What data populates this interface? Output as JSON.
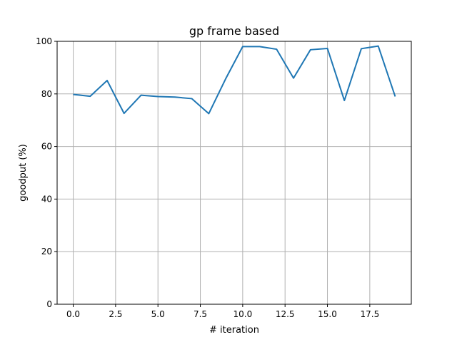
{
  "chart_data": {
    "type": "line",
    "title": "gp frame based",
    "xlabel": "# iteration",
    "ylabel": "goodput (%)",
    "xlim": [
      -0.95,
      19.95
    ],
    "ylim": [
      0,
      100
    ],
    "xticks": [
      0.0,
      2.5,
      5.0,
      7.5,
      10.0,
      12.5,
      15.0,
      17.5
    ],
    "xtick_labels": [
      "0.0",
      "2.5",
      "5.0",
      "7.5",
      "10.0",
      "12.5",
      "15.0",
      "17.5"
    ],
    "yticks": [
      0,
      20,
      40,
      60,
      80,
      100
    ],
    "ytick_labels": [
      "0",
      "20",
      "40",
      "60",
      "80",
      "100"
    ],
    "grid": true,
    "series": [
      {
        "color": "#1f77b4",
        "x": [
          0,
          1,
          2,
          3,
          4,
          5,
          6,
          7,
          8,
          9,
          10,
          11,
          12,
          13,
          14,
          15,
          16,
          17,
          18,
          19
        ],
        "y": [
          79.8,
          79.1,
          85.1,
          72.6,
          79.5,
          79.0,
          78.8,
          78.2,
          72.5,
          85.8,
          98.0,
          98.0,
          97.0,
          86.0,
          96.8,
          97.3,
          77.5,
          97.2,
          98.2,
          79.0
        ]
      }
    ]
  }
}
